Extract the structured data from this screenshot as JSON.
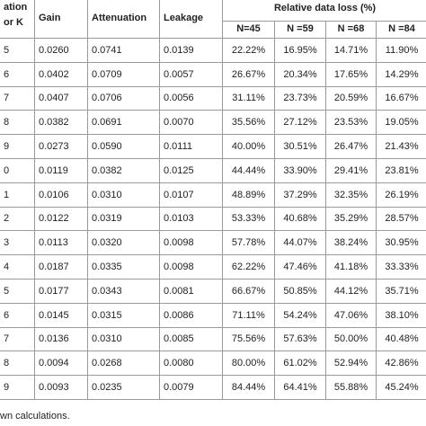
{
  "header": {
    "first": "ation or K",
    "gain": "Gain",
    "attenuation": "Attenuation",
    "leakage": "Leakage",
    "group": "Relative data loss (%)",
    "n": [
      "N=45",
      "N =59",
      "N =68",
      "N =84"
    ]
  },
  "table": {
    "rows": [
      [
        "5",
        "0.0260",
        "0.0741",
        "0.0139",
        "22.22%",
        "16.95%",
        "14.71%",
        "11.90%"
      ],
      [
        "6",
        "0.0402",
        "0.0709",
        "0.0057",
        "26.67%",
        "20.34%",
        "17.65%",
        "14.29%"
      ],
      [
        "7",
        "0.0407",
        "0.0706",
        "0.0056",
        "31.11%",
        "23.73%",
        "20.59%",
        "16.67%"
      ],
      [
        "8",
        "0.0382",
        "0.0691",
        "0.0070",
        "35.56%",
        "27.12%",
        "23.53%",
        "19.05%"
      ],
      [
        "9",
        "0.0273",
        "0.0590",
        "0.0111",
        "40.00%",
        "30.51%",
        "26.47%",
        "21.43%"
      ],
      [
        "0",
        "0.0119",
        "0.0382",
        "0.0125",
        "44.44%",
        "33.90%",
        "29.41%",
        "23.81%"
      ],
      [
        "1",
        "0.0106",
        "0.0310",
        "0.0107",
        "48.89%",
        "37.29%",
        "32.35%",
        "26.19%"
      ],
      [
        "2",
        "0.0122",
        "0.0319",
        "0.0103",
        "53.33%",
        "40.68%",
        "35.29%",
        "28.57%"
      ],
      [
        "3",
        "0.0113",
        "0.0320",
        "0.0098",
        "57.78%",
        "44.07%",
        "38.24%",
        "30.95%"
      ],
      [
        "4",
        "0.0187",
        "0.0335",
        "0.0098",
        "62.22%",
        "47.46%",
        "41.18%",
        "33.33%"
      ],
      [
        "5",
        "0.0177",
        "0.0343",
        "0.0081",
        "66.67%",
        "50.85%",
        "44.12%",
        "35.71%"
      ],
      [
        "6",
        "0.0145",
        "0.0315",
        "0.0086",
        "71.11%",
        "54.24%",
        "47.06%",
        "38.10%"
      ],
      [
        "7",
        "0.0136",
        "0.0310",
        "0.0085",
        "75.56%",
        "57.63%",
        "50.00%",
        "40.48%"
      ],
      [
        "8",
        "0.0094",
        "0.0268",
        "0.0080",
        "80.00%",
        "61.02%",
        "52.94%",
        "42.86%"
      ],
      [
        "9",
        "0.0093",
        "0.0235",
        "0.0079",
        "84.44%",
        "64.41%",
        "55.88%",
        "45.24%"
      ]
    ]
  },
  "footnote": "wn calculations."
}
